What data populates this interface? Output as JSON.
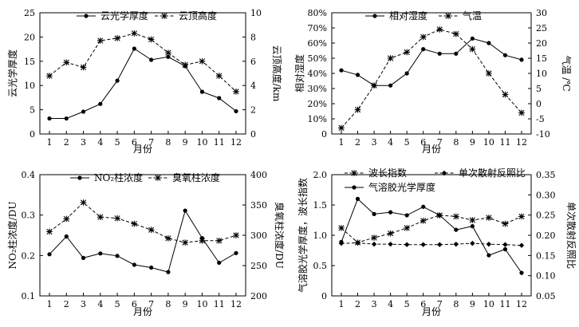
{
  "chart_data": [
    {
      "type": "line",
      "title": "",
      "xlabel": "月份",
      "ylabel": "云光学厚度",
      "y2label": "云顶高度/km",
      "categories": [
        1,
        2,
        3,
        4,
        5,
        6,
        7,
        8,
        9,
        10,
        11,
        12
      ],
      "ylim": [
        0,
        25
      ],
      "yticks": [
        0,
        5,
        10,
        15,
        20,
        25
      ],
      "y2lim": [
        0,
        10
      ],
      "y2ticks": [
        0,
        2,
        4,
        6,
        8,
        10
      ],
      "series": [
        {
          "name": "云光学厚度",
          "axis": "left",
          "style": "solid",
          "marker": "circle",
          "values": [
            3.2,
            3.2,
            4.6,
            6.2,
            11.0,
            17.6,
            15.3,
            15.9,
            14.0,
            8.7,
            7.4,
            4.7
          ]
        },
        {
          "name": "云顶高度",
          "axis": "right",
          "style": "dashed",
          "marker": "star",
          "values": [
            4.8,
            5.9,
            5.5,
            7.7,
            7.9,
            8.3,
            7.8,
            6.7,
            5.7,
            6.0,
            4.8,
            3.5
          ]
        }
      ],
      "legend": "top"
    },
    {
      "type": "line",
      "title": "",
      "xlabel": "月份",
      "ylabel": "相对湿度",
      "y2label": "气温 /℃",
      "categories": [
        1,
        2,
        3,
        4,
        5,
        6,
        7,
        8,
        9,
        10,
        11,
        12
      ],
      "ylim": [
        0,
        80
      ],
      "yticks": [
        0,
        10,
        20,
        30,
        40,
        50,
        60,
        70,
        80
      ],
      "ytick_labels": [
        "0",
        "10%",
        "20%",
        "30%",
        "40%",
        "50%",
        "60%",
        "70%",
        "80%"
      ],
      "y2lim": [
        -10,
        30
      ],
      "y2ticks": [
        -10,
        -5,
        0,
        5,
        10,
        15,
        20,
        25,
        30
      ],
      "series": [
        {
          "name": "相对湿度",
          "axis": "left",
          "style": "solid",
          "marker": "circle",
          "values": [
            42,
            39,
            32,
            32,
            40,
            56,
            53,
            53,
            63,
            60,
            52,
            49
          ]
        },
        {
          "name": "气温",
          "axis": "right",
          "style": "dashed",
          "marker": "star",
          "values": [
            -8,
            -2,
            6,
            15,
            17,
            22,
            24.5,
            23,
            18,
            10,
            3,
            -3
          ]
        }
      ],
      "legend": "top"
    },
    {
      "type": "line",
      "title": "",
      "xlabel": "月份",
      "ylabel": "NO₂柱浓度/DU",
      "y2label": "臭氧柱浓度/DU",
      "categories": [
        1,
        2,
        3,
        4,
        5,
        6,
        7,
        8,
        9,
        10,
        11,
        12
      ],
      "ylim": [
        0.1,
        0.4
      ],
      "yticks": [
        0.1,
        0.2,
        0.3,
        0.4
      ],
      "y2lim": [
        200,
        400
      ],
      "y2ticks": [
        200,
        250,
        300,
        350,
        400
      ],
      "series": [
        {
          "name": "NO₂柱浓度",
          "axis": "left",
          "style": "solid",
          "marker": "circle",
          "values": [
            0.203,
            0.247,
            0.194,
            0.205,
            0.199,
            0.177,
            0.17,
            0.159,
            0.311,
            0.243,
            0.182,
            0.206
          ]
        },
        {
          "name": "臭氧柱浓度",
          "axis": "right",
          "style": "dashed",
          "marker": "star",
          "values": [
            306,
            327,
            354,
            330,
            328,
            319,
            309,
            295,
            288,
            291,
            291,
            300
          ]
        }
      ],
      "legend": "top"
    },
    {
      "type": "line",
      "title": "",
      "xlabel": "月份",
      "ylabel": "气溶胶光学厚度，波长指数",
      "y2label": "单次散射反照比",
      "categories": [
        1,
        2,
        3,
        4,
        5,
        6,
        7,
        8,
        9,
        10,
        11,
        12
      ],
      "ylim": [
        0,
        2.0
      ],
      "yticks": [
        0,
        0.5,
        1.0,
        1.5,
        2.0
      ],
      "ytick_labels": [
        "0",
        "0.5",
        "1.0",
        "1.5",
        "2.0"
      ],
      "y2lim": [
        0.05,
        0.35
      ],
      "y2ticks": [
        0.05,
        0.1,
        0.15,
        0.2,
        0.25,
        0.3,
        0.35
      ],
      "y2tick_labels": [
        "0.05",
        "0.10",
        "0.15",
        "0.20",
        "0.25",
        "0.30",
        "0.35"
      ],
      "series": [
        {
          "name": "波长指数",
          "axis": "left",
          "style": "dashed",
          "marker": "star",
          "values": [
            1.12,
            0.88,
            0.96,
            1.03,
            1.12,
            1.24,
            1.33,
            1.31,
            1.25,
            1.29,
            1.19,
            1.31
          ]
        },
        {
          "name": "单次散射反照比",
          "axis": "right",
          "style": "dashed",
          "marker": "diamond",
          "values": [
            0.18,
            0.181,
            0.178,
            0.178,
            0.177,
            0.177,
            0.177,
            0.178,
            0.18,
            0.178,
            0.177,
            0.175
          ]
        },
        {
          "name": "气溶胶光学厚度",
          "axis": "left",
          "style": "solid",
          "marker": "circle",
          "values": [
            0.89,
            1.6,
            1.35,
            1.38,
            1.33,
            1.47,
            1.33,
            1.09,
            1.15,
            0.67,
            0.77,
            0.38
          ]
        }
      ],
      "legend": "top"
    }
  ]
}
